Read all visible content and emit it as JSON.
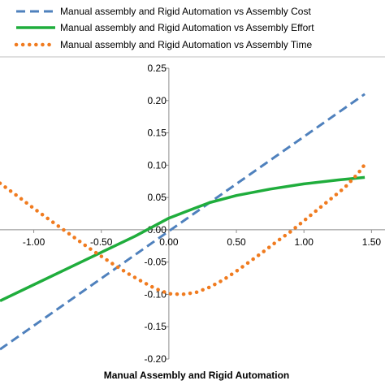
{
  "chart_data": {
    "type": "line",
    "xlabel": "Manual Assembly and Rigid Automation",
    "ylabel": "",
    "xlim": [
      -1.25,
      1.6
    ],
    "ylim": [
      -0.2,
      0.25
    ],
    "x_ticks": [
      "-1.00",
      "-0.50",
      "0.00",
      "0.50",
      "1.00",
      "1.50"
    ],
    "x_tick_values": [
      -1.0,
      -0.5,
      0.0,
      0.5,
      1.0,
      1.5
    ],
    "y_ticks": [
      "0.25",
      "0.20",
      "0.15",
      "0.10",
      "0.05",
      "0.00",
      "-0.05",
      "-0.10",
      "-0.15",
      "-0.20"
    ],
    "y_tick_values": [
      0.25,
      0.2,
      0.15,
      0.1,
      0.05,
      0.0,
      -0.05,
      -0.1,
      -0.15,
      -0.2
    ],
    "grid": false,
    "legend_position": "top",
    "series": [
      {
        "name": "Manual assembly and Rigid Automation vs Assembly Cost",
        "color": "#4f81bd",
        "style": "dashed",
        "x": [
          -1.25,
          1.45
        ],
        "y": [
          -0.185,
          0.21
        ]
      },
      {
        "name": "Manual assembly and Rigid Automation vs Assembly Effort",
        "color": "#1fad3c",
        "style": "solid",
        "x": [
          -1.25,
          -1.0,
          -0.75,
          -0.5,
          -0.25,
          0.0,
          0.15,
          0.3,
          0.5,
          0.75,
          1.0,
          1.25,
          1.45
        ],
        "y": [
          -0.11,
          -0.085,
          -0.06,
          -0.035,
          -0.01,
          0.018,
          0.03,
          0.042,
          0.053,
          0.063,
          0.071,
          0.077,
          0.081
        ]
      },
      {
        "name": "Manual assembly and Rigid Automation vs Assembly Time",
        "color": "#f07b1f",
        "style": "dotted",
        "x": [
          -1.25,
          -1.1,
          -1.0,
          -0.9,
          -0.8,
          -0.7,
          -0.6,
          -0.5,
          -0.4,
          -0.3,
          -0.2,
          -0.1,
          0.0,
          0.1,
          0.2,
          0.3,
          0.4,
          0.5,
          0.6,
          0.7,
          0.8,
          0.9,
          1.0,
          1.1,
          1.2,
          1.3,
          1.4,
          1.45
        ],
        "y": [
          0.072,
          0.049,
          0.033,
          0.018,
          0.003,
          -0.012,
          -0.027,
          -0.041,
          -0.055,
          -0.068,
          -0.08,
          -0.091,
          -0.099,
          -0.1,
          -0.097,
          -0.089,
          -0.078,
          -0.064,
          -0.049,
          -0.034,
          -0.018,
          -0.003,
          0.014,
          0.031,
          0.048,
          0.065,
          0.087,
          0.101
        ]
      }
    ]
  }
}
